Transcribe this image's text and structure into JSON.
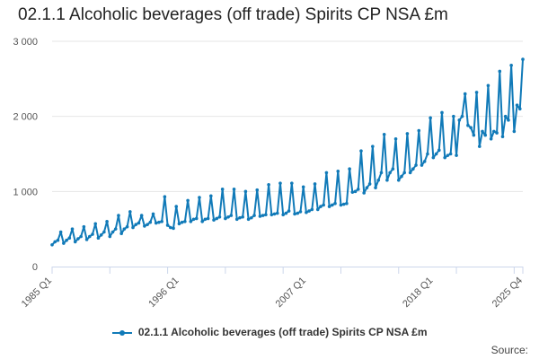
{
  "title": "02.1.1 Alcoholic beverages (off trade) Spirits CP NSA £m",
  "source_label": "Source:",
  "colors": {
    "series": "#117ab8",
    "grid": "#e6e6e6",
    "axis": "#ccd6eb"
  },
  "chart_data": {
    "type": "line",
    "title": "02.1.1 Alcoholic beverages (off trade) Spirits CP NSA £m",
    "xlabel": "",
    "ylabel": "",
    "ylim": [
      0,
      3000
    ],
    "yticks": [
      0,
      1000,
      2000,
      3000
    ],
    "ytick_labels": [
      "0",
      "1 000",
      "2 000",
      "3 000"
    ],
    "xtick_labels": [
      "1985 Q1",
      "1996 Q1",
      "2007 Q1",
      "2018 Q1",
      "2025 Q4"
    ],
    "x_start": "1985 Q1",
    "x_end": "2025 Q4",
    "grid": true,
    "legend_position": "bottom",
    "series": [
      {
        "name": "02.1.1 Alcoholic beverages (off trade) Spirits CP NSA £m",
        "values": [
          290,
          330,
          350,
          460,
          310,
          350,
          380,
          500,
          330,
          370,
          400,
          530,
          360,
          400,
          430,
          570,
          380,
          420,
          460,
          600,
          400,
          460,
          500,
          680,
          440,
          500,
          530,
          730,
          520,
          560,
          580,
          680,
          540,
          560,
          590,
          700,
          580,
          590,
          600,
          930,
          550,
          520,
          510,
          800,
          570,
          590,
          600,
          880,
          600,
          630,
          640,
          920,
          600,
          630,
          640,
          940,
          620,
          640,
          660,
          1030,
          640,
          660,
          680,
          1030,
          630,
          650,
          660,
          1000,
          630,
          650,
          680,
          1020,
          670,
          680,
          690,
          1090,
          690,
          700,
          710,
          1110,
          690,
          710,
          740,
          1110,
          700,
          710,
          730,
          1060,
          720,
          740,
          760,
          1100,
          760,
          800,
          820,
          1250,
          800,
          820,
          840,
          1270,
          820,
          830,
          840,
          1300,
          990,
          1000,
          1030,
          1540,
          980,
          1050,
          1100,
          1600,
          1050,
          1150,
          1250,
          1760,
          1150,
          1250,
          1300,
          1700,
          1150,
          1200,
          1250,
          1770,
          1250,
          1300,
          1350,
          1810,
          1350,
          1400,
          1500,
          1980,
          1450,
          1500,
          1550,
          2050,
          1450,
          1480,
          1500,
          2000,
          1480,
          1950,
          2000,
          2300,
          1880,
          1850,
          1750,
          2320,
          1600,
          1800,
          1750,
          2410,
          1700,
          1800,
          1780,
          2600,
          1730,
          2000,
          1950,
          2680,
          1800,
          2150,
          2100,
          2760
        ]
      }
    ]
  }
}
